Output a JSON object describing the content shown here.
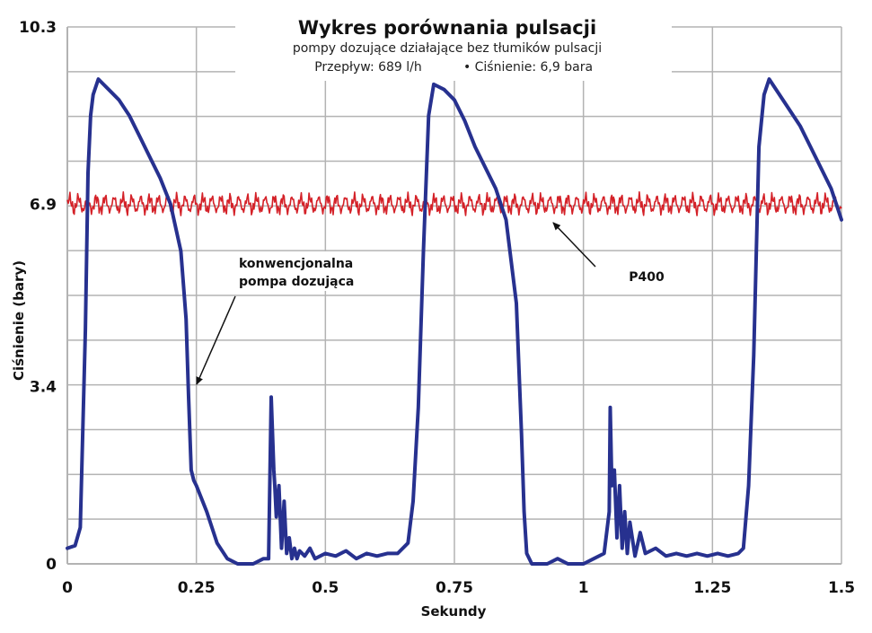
{
  "chart_data": {
    "type": "line",
    "title": "Wykres porównania pulsacji",
    "subtitle": "pompy dozujące działające bez tłumików pulsacji",
    "conditions": [
      "Przepływ: 689 l/h",
      "• Ciśnienie: 6,9 bara"
    ],
    "xlabel": "Sekundy",
    "ylabel": "Ciśnienie (bary)",
    "xlim": [
      0,
      1.5
    ],
    "ylim": [
      0,
      10.3
    ],
    "x_ticks": [
      0,
      0.25,
      0.5,
      0.75,
      1,
      1.25,
      1.5
    ],
    "x_tick_labels": [
      "0",
      "0.25",
      "0.5",
      "0.75",
      "1",
      "1.25",
      "1.5"
    ],
    "y_ticks": [
      0,
      3.4,
      6.9,
      10.3
    ],
    "y_tick_labels": [
      "0",
      "3.4",
      "6.9",
      "10.3"
    ],
    "grid": true,
    "colors": {
      "conventional": "#27318f",
      "p400": "#d42128",
      "grid": "#b3b3b3"
    },
    "annotations": [
      {
        "text": [
          "konwencjonalna",
          "pompa dozująca"
        ],
        "points_to": [
          0.245,
          3.4
        ]
      },
      {
        "text": [
          "P400"
        ],
        "points_to": [
          0.94,
          6.6
        ]
      }
    ],
    "series": [
      {
        "key": "conventional",
        "x": [
          0,
          0.015,
          0.025,
          0.035,
          0.04,
          0.045,
          0.05,
          0.06,
          0.07,
          0.08,
          0.1,
          0.12,
          0.14,
          0.16,
          0.18,
          0.2,
          0.22,
          0.23,
          0.235,
          0.24,
          0.245,
          0.25,
          0.27,
          0.29,
          0.31,
          0.33,
          0.36,
          0.38,
          0.39,
          0.395,
          0.4,
          0.402,
          0.405,
          0.41,
          0.415,
          0.42,
          0.425,
          0.43,
          0.435,
          0.44,
          0.445,
          0.45,
          0.46,
          0.47,
          0.48,
          0.5,
          0.52,
          0.54,
          0.56,
          0.58,
          0.6,
          0.62,
          0.64,
          0.66,
          0.67,
          0.68,
          0.69,
          0.7,
          0.71,
          0.73,
          0.75,
          0.77,
          0.79,
          0.81,
          0.83,
          0.85,
          0.87,
          0.88,
          0.885,
          0.89,
          0.9,
          0.92,
          0.93,
          0.95,
          0.97,
          0.99,
          1.0,
          1.02,
          1.04,
          1.05,
          1.052,
          1.055,
          1.06,
          1.065,
          1.07,
          1.075,
          1.08,
          1.085,
          1.09,
          1.1,
          1.11,
          1.12,
          1.14,
          1.16,
          1.18,
          1.2,
          1.22,
          1.24,
          1.26,
          1.28,
          1.3,
          1.31,
          1.32,
          1.33,
          1.34,
          1.35,
          1.36,
          1.38,
          1.4,
          1.42,
          1.44,
          1.46,
          1.48,
          1.5
        ],
        "values": [
          0.3,
          0.35,
          0.7,
          4.5,
          7.5,
          8.6,
          9.0,
          9.3,
          9.2,
          9.1,
          8.9,
          8.6,
          8.2,
          7.8,
          7.4,
          6.9,
          6.0,
          4.7,
          3.2,
          1.8,
          1.6,
          1.5,
          1.0,
          0.4,
          0.1,
          0,
          0,
          0.1,
          0.1,
          3.2,
          1.8,
          1.5,
          0.9,
          1.5,
          0.3,
          1.2,
          0.2,
          0.5,
          0.1,
          0.3,
          0.1,
          0.25,
          0.15,
          0.3,
          0.1,
          0.2,
          0.15,
          0.25,
          0.1,
          0.2,
          0.15,
          0.2,
          0.2,
          0.4,
          1.2,
          3.0,
          6.0,
          8.6,
          9.2,
          9.1,
          8.9,
          8.5,
          8.0,
          7.6,
          7.2,
          6.6,
          5.0,
          2.5,
          1.0,
          0.2,
          0,
          0,
          0,
          0.1,
          0,
          0,
          0,
          0.1,
          0.2,
          1.0,
          3.0,
          1.5,
          1.8,
          0.5,
          1.5,
          0.3,
          1.0,
          0.2,
          0.8,
          0.15,
          0.6,
          0.2,
          0.3,
          0.15,
          0.2,
          0.15,
          0.2,
          0.15,
          0.2,
          0.15,
          0.2,
          0.3,
          1.5,
          4.0,
          8.0,
          9.0,
          9.3,
          9.0,
          8.7,
          8.4,
          8.0,
          7.6,
          7.2,
          6.6
        ]
      },
      {
        "key": "p400",
        "x": [
          0,
          1.5
        ],
        "values": [
          6.9,
          6.9
        ],
        "note_visual": "small high-frequency ripple of about ±0.2 bar around 6.9"
      }
    ]
  }
}
